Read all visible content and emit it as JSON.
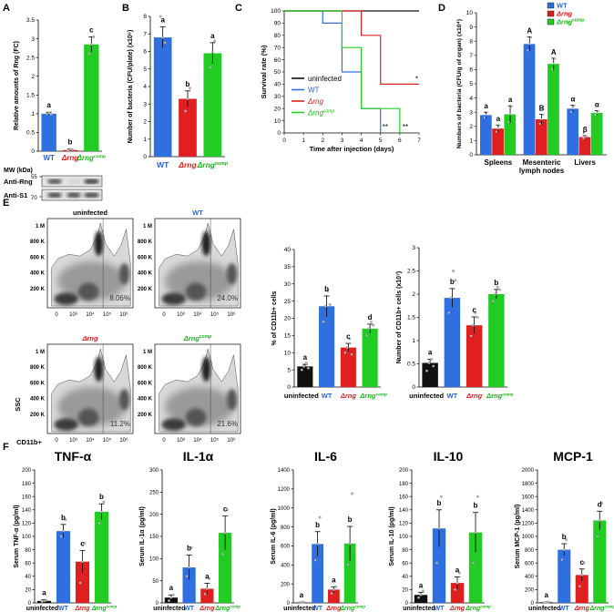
{
  "colors": {
    "uninfected": "#111111",
    "wt": "#2f6fe0",
    "rng": "#e02020",
    "comp": "#22cc22",
    "wt_text": "#2a62d6",
    "rng_text": "#e01a1a",
    "comp_text": "#16b616",
    "flow_background": "#d8d8d8"
  },
  "panel_letters": [
    "A",
    "B",
    "C",
    "D",
    "E",
    "F"
  ],
  "comp_superscript": "comp",
  "chart_data": [
    {
      "id": "A",
      "type": "bar",
      "ylabel": "Relative amounts of Rng (FC)",
      "categories": [
        "WT",
        "Δrng",
        "Δrng"
      ],
      "values": [
        1.0,
        0.03,
        2.85
      ],
      "errors": [
        0.04,
        0.03,
        0.2
      ],
      "points": [
        [
          1.0,
          1.02,
          0.98
        ],
        [
          0.0,
          0.05,
          0.04
        ],
        [
          2.6,
          2.85,
          3.05
        ]
      ],
      "letters": [
        "a",
        "b",
        "c"
      ],
      "ylim": [
        0,
        3.5
      ],
      "yticks": [
        "0",
        "0.5",
        "1",
        "1.5",
        "2",
        "2.5",
        "3",
        "3.5"
      ],
      "western": {
        "header": "MW (kDa)",
        "rows": [
          {
            "label": "Anti-Rng",
            "mw": "55"
          },
          {
            "label": "Anti-S1",
            "mw": "70"
          }
        ]
      }
    },
    {
      "id": "B",
      "type": "bar",
      "ylabel": "Number of bacteria (CFU/plate) (x10⁶)",
      "categories": [
        "WT",
        "Δrng",
        "Δrng"
      ],
      "values": [
        6.8,
        3.3,
        5.9
      ],
      "errors": [
        0.6,
        0.45,
        0.6
      ],
      "points": [
        [
          8.0,
          6.8,
          6.5
        ],
        [
          2.6,
          3.3,
          3.9
        ],
        [
          5.1,
          6.0,
          6.6
        ]
      ],
      "letters": [
        "a",
        "b",
        "a"
      ],
      "ylim": [
        0,
        8
      ],
      "yticks": [
        "0",
        "1",
        "2",
        "3",
        "4",
        "5",
        "6",
        "7",
        "8"
      ]
    },
    {
      "id": "C",
      "type": "line",
      "xlabel": "Time after injection (days)",
      "ylabel": "Survival rate (%)",
      "xlim": [
        0,
        7
      ],
      "ylim": [
        0,
        100
      ],
      "xticks": [
        "0",
        "1",
        "2",
        "3",
        "4",
        "5",
        "6",
        "7"
      ],
      "yticks": [
        "0",
        "10",
        "20",
        "30",
        "40",
        "50",
        "60",
        "70",
        "80",
        "90",
        "100"
      ],
      "series": [
        {
          "name": "uninfected",
          "x": [
            0,
            7
          ],
          "y": [
            100,
            100
          ]
        },
        {
          "name": "WT",
          "x": [
            0,
            2,
            2,
            3,
            3,
            4,
            4,
            5,
            5
          ],
          "y": [
            100,
            100,
            90,
            90,
            50,
            50,
            20,
            20,
            0
          ]
        },
        {
          "name": "Δrng",
          "x": [
            0,
            4,
            4,
            5,
            5,
            7
          ],
          "y": [
            100,
            100,
            80,
            80,
            40,
            40
          ]
        },
        {
          "name": "Δrng",
          "x": [
            0,
            3,
            3,
            4,
            4,
            6,
            6
          ],
          "y": [
            100,
            100,
            70,
            70,
            20,
            20,
            0
          ]
        }
      ],
      "annotations": [
        "*",
        "**",
        "**"
      ]
    },
    {
      "id": "D",
      "type": "bar",
      "ylabel": "Numbers of bacteria (CFU/g of organ) (x10⁴)",
      "categories": [
        "Spleens",
        "Mesenteric lymph nodes",
        "Livers"
      ],
      "series": [
        {
          "name": "WT",
          "values": [
            2.8,
            7.8,
            3.25
          ],
          "errors": [
            0.2,
            0.5,
            0.25
          ]
        },
        {
          "name": "Δrng",
          "values": [
            1.85,
            2.5,
            1.25
          ],
          "errors": [
            0.25,
            0.35,
            0.1
          ]
        },
        {
          "name": "Δrng",
          "values": [
            2.85,
            6.4,
            2.95
          ],
          "errors": [
            0.6,
            0.4,
            0.15
          ]
        }
      ],
      "letters": [
        [
          "a",
          "a",
          "a"
        ],
        [
          "A",
          "B",
          "A"
        ],
        [
          "α",
          "β",
          "α"
        ]
      ],
      "ylim": [
        0,
        10
      ],
      "yticks": [
        "0",
        "1",
        "2",
        "3",
        "4",
        "5",
        "6",
        "7",
        "8",
        "9",
        "10"
      ],
      "legend": [
        "WT",
        "Δrng",
        "Δrng"
      ],
      "legend_position": "top-right"
    },
    {
      "id": "E-flow",
      "type": "scatter",
      "plots": [
        {
          "title": "uninfected",
          "percent": "8.06%"
        },
        {
          "title": "WT",
          "percent": "24.0%"
        },
        {
          "title": "Δrng",
          "percent": "11.2%"
        },
        {
          "title": "Δrng",
          "percent": "21.6%"
        }
      ],
      "yticks": [
        "1 M",
        "800 K",
        "600 K",
        "400 K",
        "200 K",
        "0"
      ],
      "xticks": [
        "0",
        "10³",
        "10⁴",
        "10⁵",
        "10⁶"
      ],
      "ylabel": "SSC",
      "xlabel": "CD11b+"
    },
    {
      "id": "E-percent",
      "type": "bar",
      "ylabel": "% of CD11b+ cells",
      "categories": [
        "uninfected",
        "WT",
        "Δrng",
        "Δrng"
      ],
      "values": [
        6.0,
        23.5,
        11.5,
        17.0
      ],
      "errors": [
        0.6,
        3.0,
        1.2,
        1.3
      ],
      "points": [
        [
          5,
          6,
          7,
          5.5
        ],
        [
          19,
          23.5,
          28,
          24
        ],
        [
          10,
          11.5,
          14,
          9.5
        ],
        [
          15,
          17,
          19,
          18
        ]
      ],
      "letters": [
        "a",
        "b",
        "c",
        "d"
      ],
      "ylim": [
        0,
        40
      ],
      "yticks": [
        "0",
        "5",
        "10",
        "15",
        "20",
        "25",
        "30",
        "35",
        "40"
      ]
    },
    {
      "id": "E-number",
      "type": "bar",
      "ylabel": "Number of CD11b+ cells (x10⁷)",
      "categories": [
        "uninfected",
        "WT",
        "Δrng",
        "Δrng"
      ],
      "values": [
        0.52,
        1.92,
        1.33,
        2.0
      ],
      "errors": [
        0.08,
        0.2,
        0.18,
        0.1
      ],
      "points": [
        [
          0.35,
          0.52,
          0.6,
          0.45
        ],
        [
          1.6,
          1.92,
          2.5,
          2.3
        ],
        [
          1.1,
          1.33,
          1.6,
          1.5
        ],
        [
          1.85,
          2.0,
          2.15,
          2.1
        ]
      ],
      "letters": [
        "a",
        "b",
        "c",
        "b"
      ],
      "ylim": [
        0,
        3
      ],
      "yticks": [
        "0",
        "0.5",
        "1",
        "1.5",
        "2",
        "2.5",
        "3"
      ]
    },
    {
      "id": "F1",
      "type": "bar",
      "title": "TNF-α",
      "ylabel": "Serum TNF-α (pg/ml)",
      "categories": [
        "uninfected",
        "WT",
        "Δrng",
        "Δrng"
      ],
      "values": [
        3,
        108,
        62,
        137
      ],
      "errors": [
        2,
        10,
        17,
        12
      ],
      "points": [
        [
          2,
          3,
          4
        ],
        [
          100,
          108,
          125
        ],
        [
          30,
          62,
          90
        ],
        [
          120,
          137,
          152
        ]
      ],
      "letters": [
        "a",
        "b",
        "c",
        "b"
      ],
      "ylim": [
        0,
        200
      ],
      "yticks": [
        "0",
        "20",
        "40",
        "60",
        "80",
        "100",
        "120",
        "140",
        "160",
        "180",
        "200"
      ]
    },
    {
      "id": "F2",
      "type": "bar",
      "title": "IL-1α",
      "ylabel": "Serum IL-1α (pg/ml)",
      "categories": [
        "uninfected",
        "WT",
        "Δrng",
        "Δrng"
      ],
      "values": [
        12,
        80,
        32,
        158
      ],
      "errors": [
        6,
        28,
        12,
        38
      ],
      "points": [
        [
          5,
          12,
          18
        ],
        [
          60,
          80,
          125
        ],
        [
          20,
          32,
          55
        ],
        [
          110,
          158,
          210
        ]
      ],
      "letters": [
        "a",
        "b",
        "a",
        "c"
      ],
      "ylim": [
        0,
        300
      ],
      "yticks": [
        "0",
        "50",
        "100",
        "150",
        "200",
        "250",
        "300"
      ]
    },
    {
      "id": "F3",
      "type": "bar",
      "title": "IL-6",
      "ylabel": "Serum IL-6 (pg/ml)",
      "categories": [
        "uninfected",
        "WT",
        "Δrng",
        "Δrng"
      ],
      "values": [
        5,
        620,
        140,
        625
      ],
      "errors": [
        3,
        130,
        30,
        180
      ],
      "points": [
        [
          3,
          5,
          8
        ],
        [
          450,
          620,
          900
        ],
        [
          100,
          140,
          170
        ],
        [
          400,
          625,
          1150
        ]
      ],
      "letters": [
        "a",
        "b",
        "a",
        "b"
      ],
      "ylim": [
        0,
        1400
      ],
      "yticks": [
        "0",
        "200",
        "400",
        "600",
        "800",
        "1000",
        "1200",
        "1400"
      ]
    },
    {
      "id": "F4",
      "type": "bar",
      "title": "IL-10",
      "ylabel": "Serum IL-10 (pg/ml)",
      "categories": [
        "uninfected",
        "WT",
        "Δrng",
        "Δrng"
      ],
      "values": [
        12,
        112,
        30,
        106
      ],
      "errors": [
        4,
        28,
        9,
        30
      ],
      "points": [
        [
          8,
          12,
          18
        ],
        [
          60,
          112,
          160
        ],
        [
          20,
          30,
          45
        ],
        [
          60,
          106,
          160
        ]
      ],
      "letters": [
        "a",
        "b",
        "a",
        "b"
      ],
      "ylim": [
        0,
        200
      ],
      "yticks": [
        "0",
        "20",
        "40",
        "60",
        "80",
        "100",
        "120",
        "140",
        "160",
        "180",
        "200"
      ]
    },
    {
      "id": "F5",
      "type": "bar",
      "title": "MCP-1",
      "ylabel": "Serum MCP-1 (pg/ml)",
      "categories": [
        "uninfected",
        "WT",
        "Δrng",
        "Δrng"
      ],
      "values": [
        10,
        800,
        420,
        1240
      ],
      "errors": [
        5,
        90,
        90,
        140
      ],
      "points": [
        [
          5,
          10,
          15
        ],
        [
          650,
          800,
          950
        ],
        [
          250,
          420,
          600
        ],
        [
          1000,
          1240,
          1500
        ]
      ],
      "letters": [
        "a",
        "b",
        "c",
        "d"
      ],
      "ylim": [
        0,
        2000
      ],
      "yticks": [
        "0",
        "200",
        "400",
        "600",
        "800",
        "1000",
        "1200",
        "1400",
        "1600",
        "1800",
        "2000"
      ]
    }
  ]
}
